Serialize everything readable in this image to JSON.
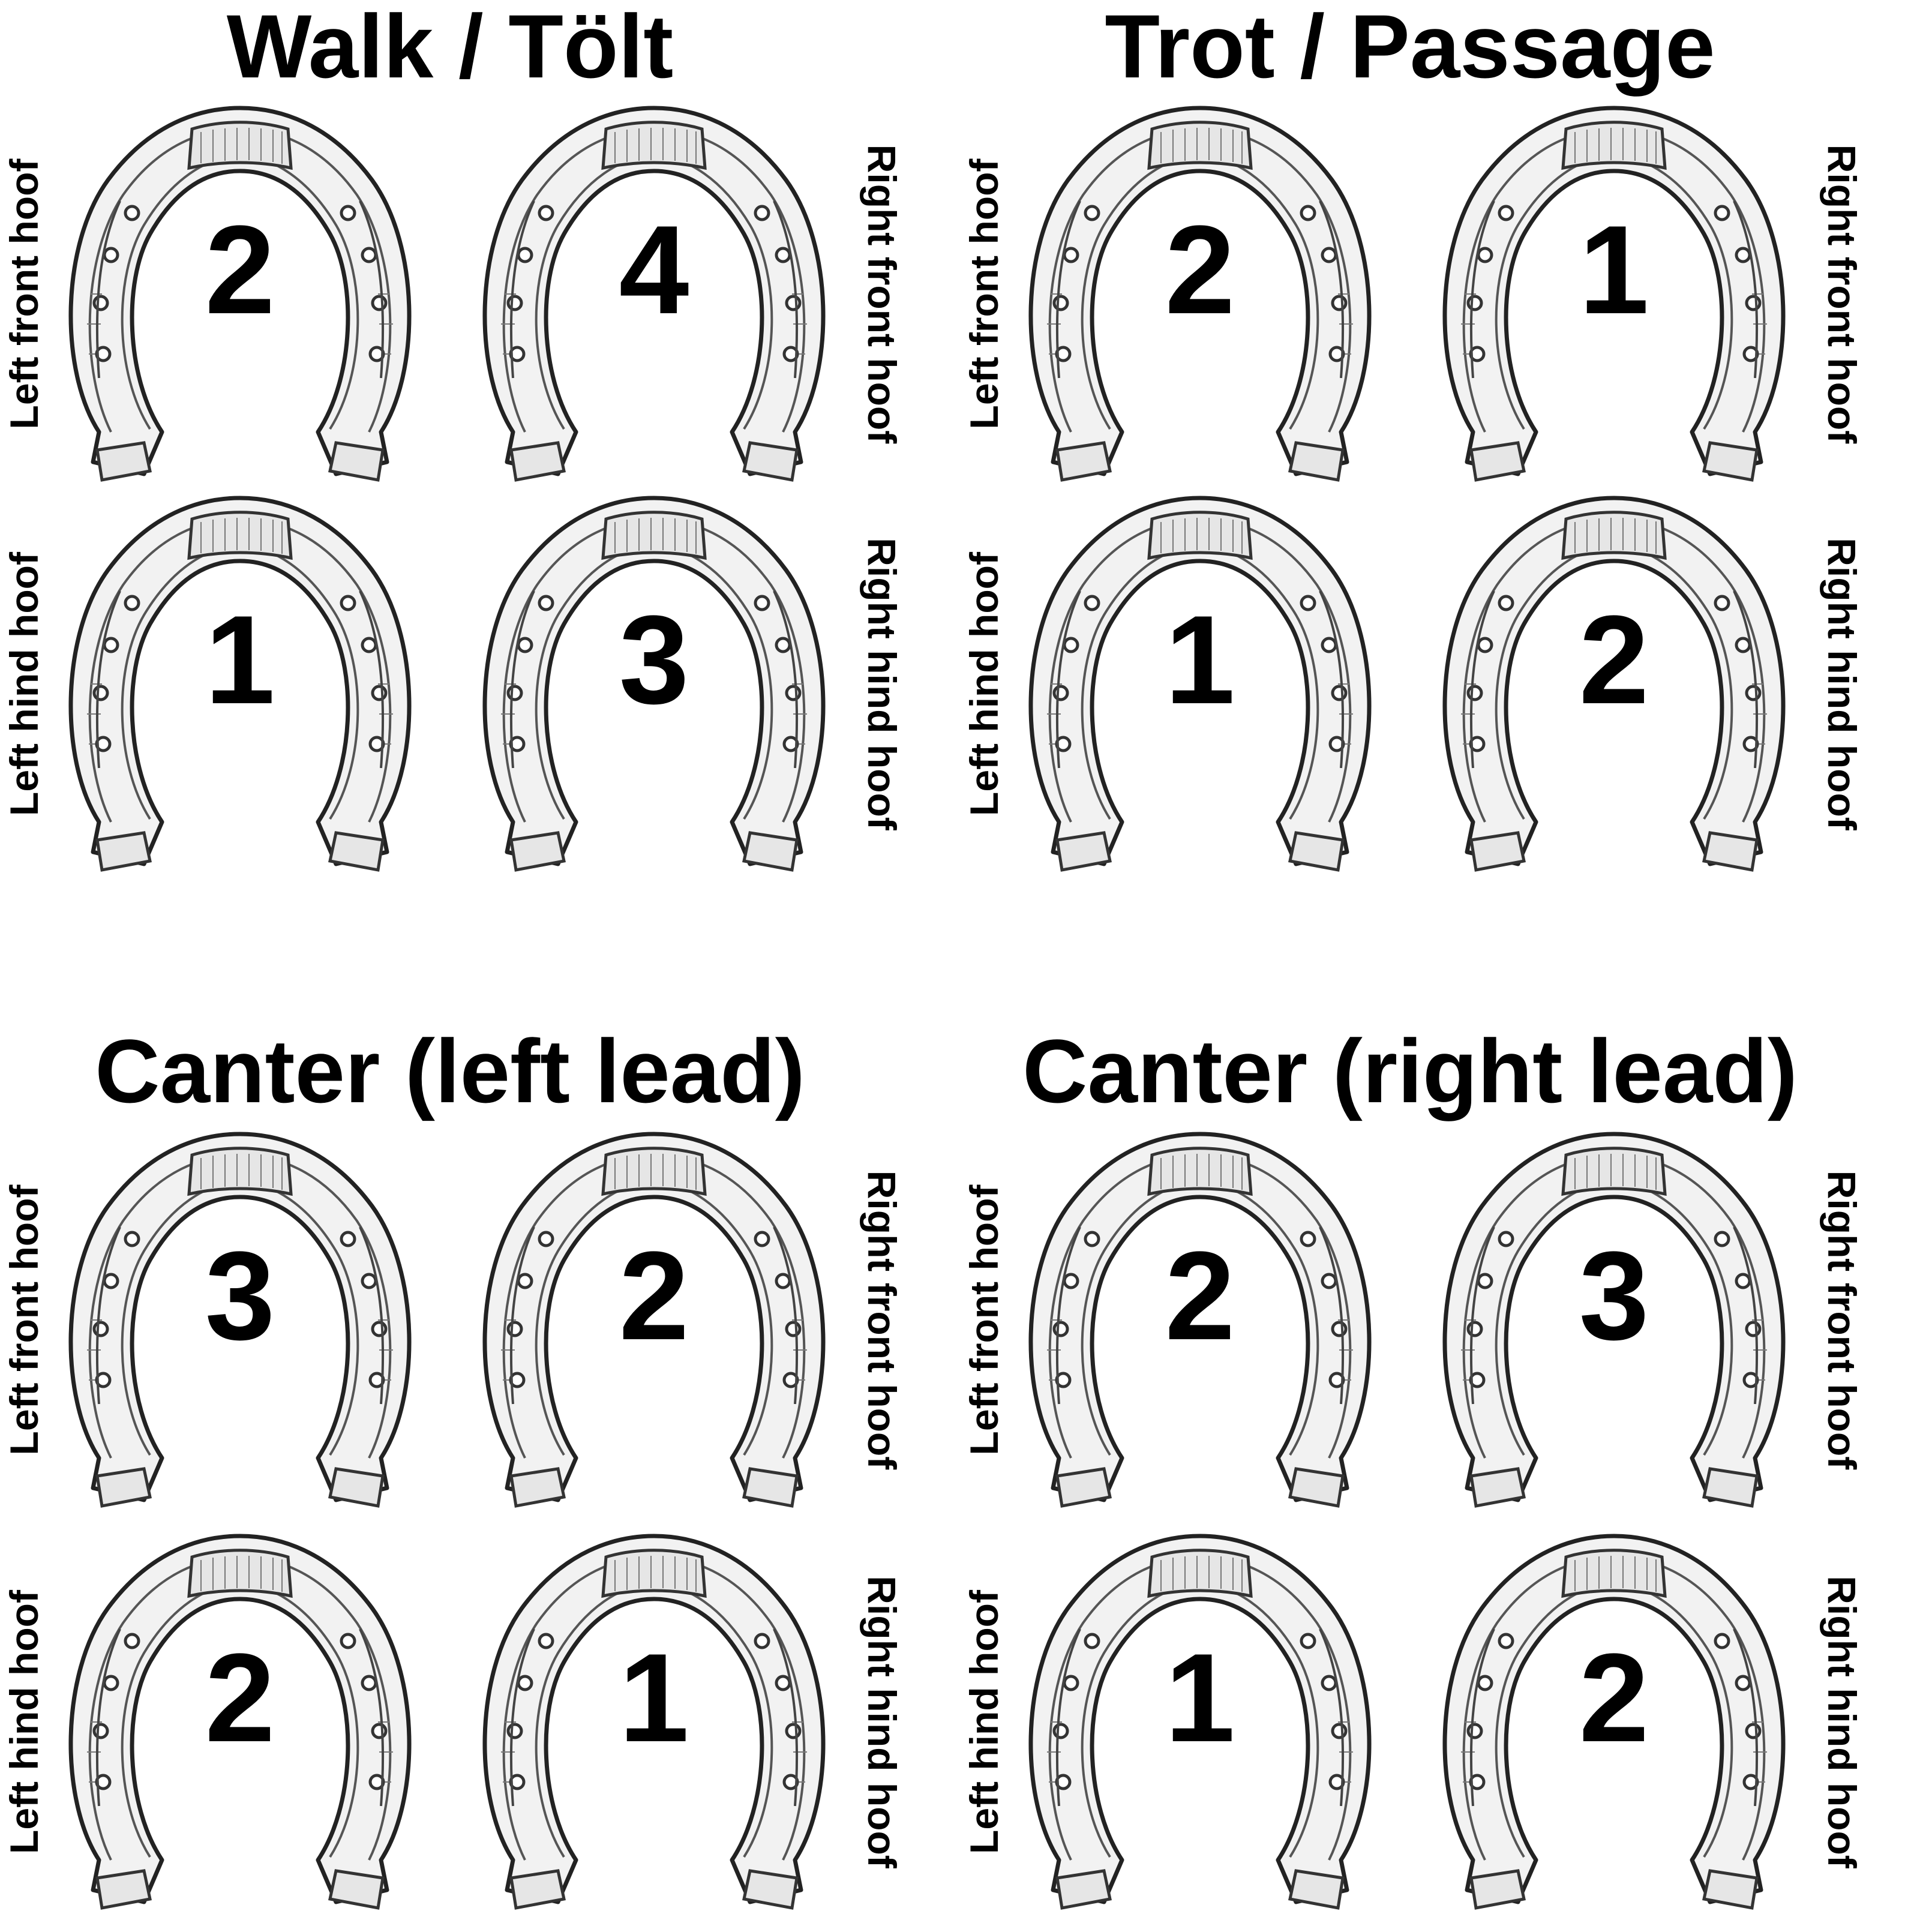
{
  "gaits": [
    {
      "title": "Walk / Tölt",
      "left_front": "2",
      "right_front": "4",
      "left_hind": "1",
      "right_hind": "3"
    },
    {
      "title": "Trot / Passage",
      "left_front": "2",
      "right_front": "1",
      "left_hind": "1",
      "right_hind": "2"
    },
    {
      "title": "Canter (left lead)",
      "left_front": "3",
      "right_front": "2",
      "left_hind": "2",
      "right_hind": "1"
    },
    {
      "title": "Canter (right lead)",
      "left_front": "2",
      "right_front": "3",
      "left_hind": "1",
      "right_hind": "2"
    }
  ],
  "labels": {
    "left_front": "Left front hoof",
    "right_front": "Right front hoof",
    "left_hind": "Left hind hoof",
    "right_hind": "Right hind hoof"
  },
  "icon": "horseshoe-icon"
}
